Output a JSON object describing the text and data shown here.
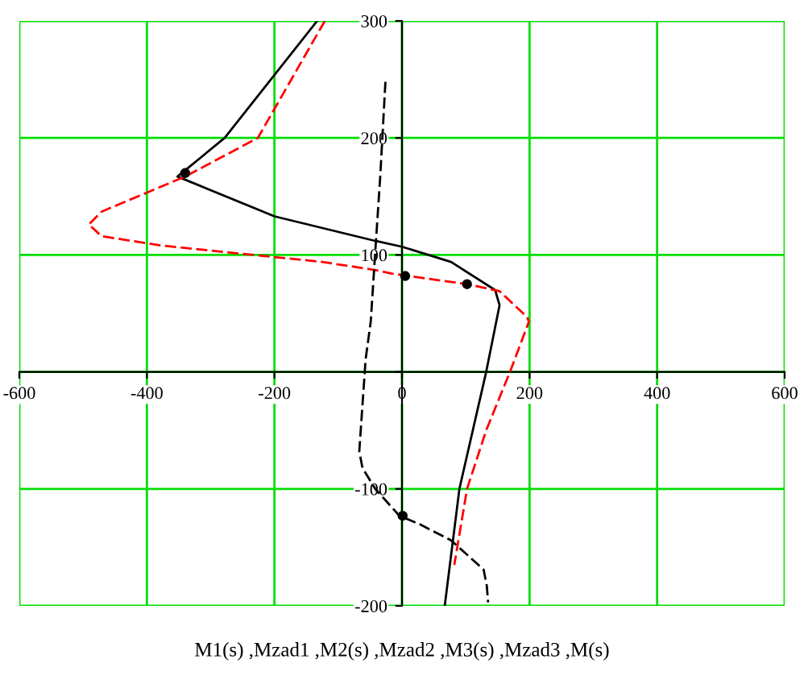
{
  "chart_data": {
    "type": "line",
    "xlabel": "M1(s) ,Mzad1 ,M2(s) ,Mzad2 ,M3(s) ,Mzad3 ,M(s)",
    "xlim": [
      -600,
      600
    ],
    "ylim": [
      -200,
      300
    ],
    "xticks": [
      -600,
      -400,
      -200,
      0,
      200,
      400,
      600
    ],
    "yticks": [
      -200,
      -100,
      {
        "value": 0,
        "label": null
      },
      100,
      200,
      300
    ],
    "grid": true,
    "legend": false,
    "series": [
      {
        "color": "#000000",
        "line_style": "solid",
        "marker": "none",
        "x": [
          -133,
          -278,
          -352,
          -200,
          -42,
          0,
          77,
          146,
          153,
          132,
          90,
          67
        ],
        "values": [
          300,
          200,
          167,
          133,
          112,
          107,
          94,
          70,
          57,
          0,
          -100,
          -200
        ]
      },
      {
        "color": "#ff0000",
        "line_style": "dashed",
        "marker": "none",
        "x": [
          -121,
          -226,
          -340,
          -471,
          -491,
          -471,
          -377,
          -251,
          -125,
          -41,
          -16,
          102,
          153,
          196,
          199,
          170,
          132,
          102,
          82
        ],
        "values": [
          300,
          200,
          167,
          137,
          126,
          116,
          108,
          101,
          94,
          87,
          84,
          75,
          69,
          47,
          43,
          1,
          -50,
          -100,
          -165
        ]
      },
      {
        "color": "#000000",
        "line_style": "dashed",
        "marker": "none",
        "x": [
          -26,
          -34,
          -42,
          -49,
          -57,
          -67,
          -62,
          -42,
          -4,
          27,
          77,
          128,
          133,
          135
        ],
        "values": [
          248,
          168,
          102,
          43,
          11,
          -68,
          -82,
          -100,
          -123,
          -130,
          -144,
          -169,
          -183,
          -197
        ]
      },
      {
        "type": "scatter",
        "color": "#000000",
        "marker": "circle",
        "x": [
          5,
          102,
          1,
          -340
        ],
        "values": [
          82,
          75,
          -123,
          170
        ]
      }
    ]
  }
}
